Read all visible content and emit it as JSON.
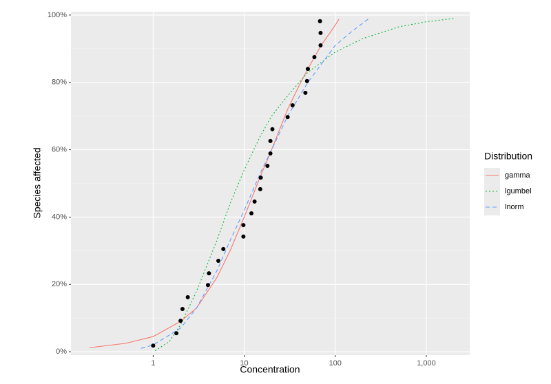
{
  "chart_data": {
    "type": "ssd",
    "x_label": "Concentration",
    "y_label": "Species affected",
    "xlim": [
      0.125,
      3000
    ],
    "ylim": [
      -1,
      101
    ],
    "log_x": true,
    "grid": true,
    "xticks": [
      1,
      10,
      100,
      {
        "value": 1000,
        "label": "1,000"
      }
    ],
    "yticks": [
      {
        "value": 0,
        "label": "0%"
      },
      {
        "value": 20,
        "label": "20%"
      },
      {
        "value": 40,
        "label": "40%"
      },
      {
        "value": 60,
        "label": "60%"
      },
      {
        "value": 80,
        "label": "80%"
      },
      {
        "value": 100,
        "label": "100%"
      }
    ],
    "points": {
      "color": "#000000",
      "x": [
        1,
        1.8,
        2,
        2.1,
        2.4,
        4,
        4.1,
        5.2,
        5.9,
        9.8,
        9.8,
        12,
        13,
        15,
        15.2,
        18,
        19.4,
        19.4,
        20.4,
        30,
        34,
        47,
        49,
        50,
        59,
        69,
        69,
        68
      ],
      "values": [
        1.8,
        5.5,
        9.2,
        12.7,
        16.2,
        19.8,
        23.3,
        27,
        30.5,
        34.2,
        37.6,
        41.1,
        44.6,
        48.3,
        51.7,
        55.2,
        58.9,
        62.6,
        66.1,
        69.7,
        73.2,
        76.9,
        80.4,
        84,
        87.5,
        91,
        94.7,
        98.2
      ]
    },
    "legend_title": "Distribution",
    "series": [
      {
        "name": "gamma",
        "color": "#F8766D",
        "linetype": "solid",
        "x": [
          0.2,
          0.5,
          1,
          2,
          3,
          5,
          7,
          10,
          15,
          20,
          30,
          40,
          50,
          70,
          100,
          110
        ],
        "values": [
          1.2,
          2.5,
          4.5,
          9,
          13,
          22,
          30,
          40,
          52,
          60,
          72,
          79,
          84,
          91,
          97,
          98.8
        ]
      },
      {
        "name": "lgumbel",
        "color": "#00BA38",
        "linetype": "dotted",
        "x": [
          1.05,
          1.5,
          2,
          3,
          5,
          7,
          10,
          15,
          20,
          30,
          50,
          100,
          200,
          500,
          1000,
          2000
        ],
        "values": [
          0.3,
          3,
          8,
          18,
          33,
          44,
          54,
          64,
          70,
          76,
          83,
          89,
          93,
          96.5,
          98,
          99
        ]
      },
      {
        "name": "lnorm",
        "color": "#619CFF",
        "linetype": "dashed",
        "x": [
          0.74,
          1,
          2,
          3,
          5,
          7,
          10,
          15,
          20,
          30,
          50,
          100,
          150,
          235
        ],
        "values": [
          1,
          2,
          7,
          13,
          24,
          33,
          42,
          53,
          60,
          70,
          80,
          91,
          95,
          99
        ]
      }
    ]
  }
}
